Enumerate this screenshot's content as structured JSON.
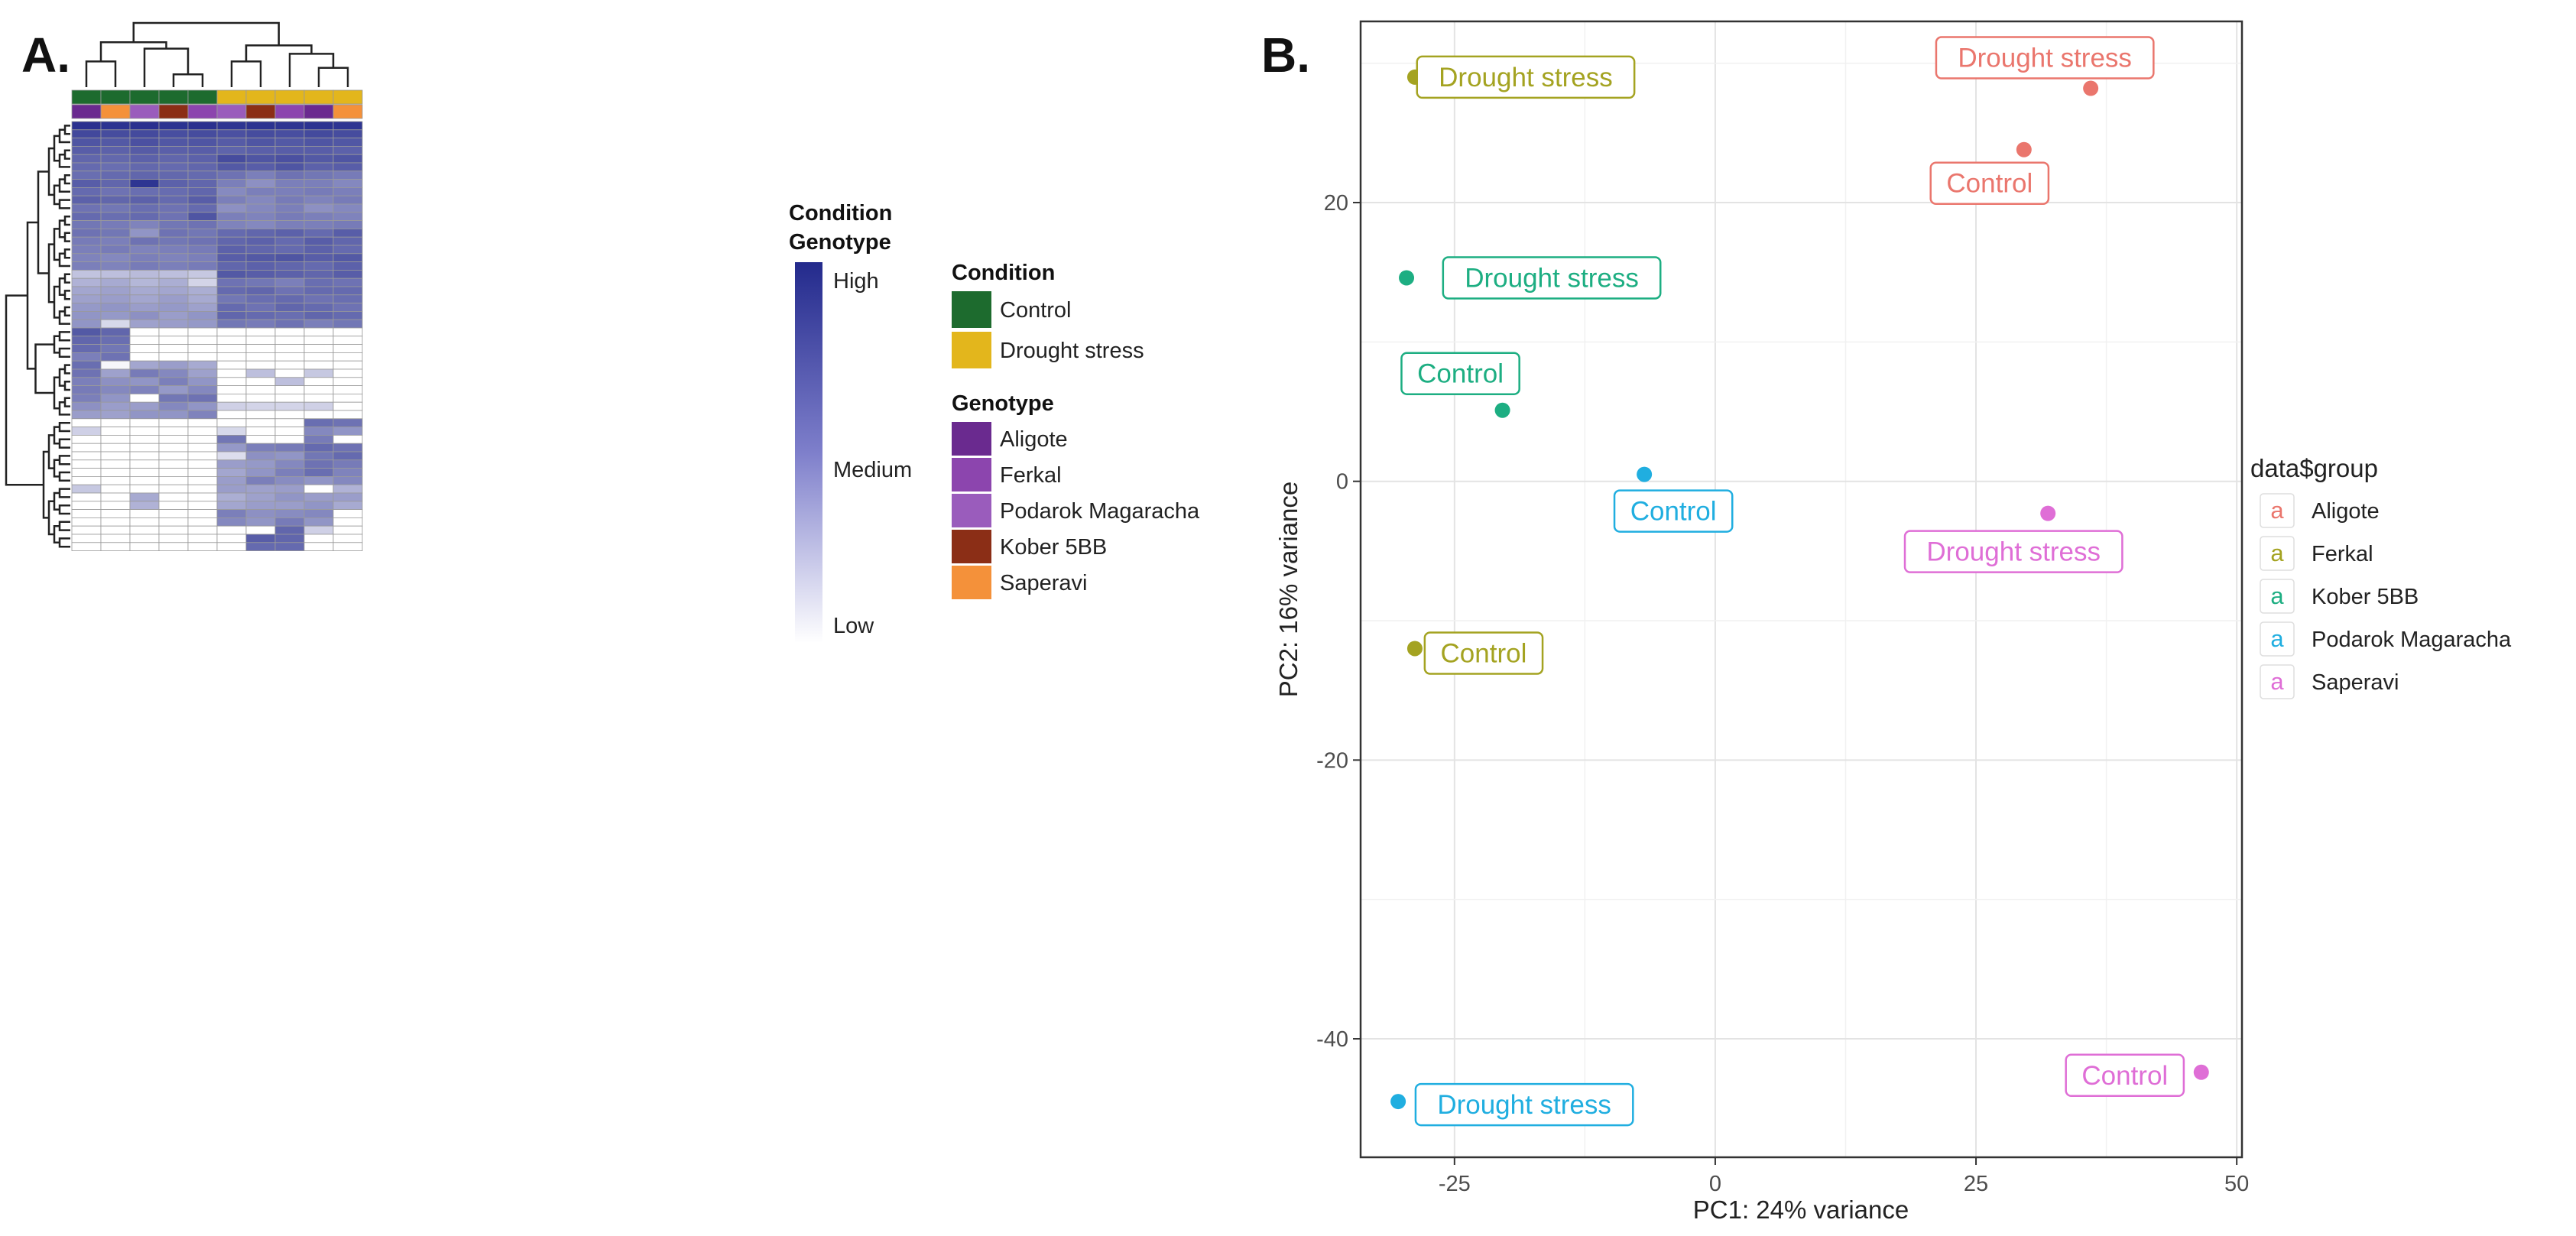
{
  "panels": {
    "a_label": "A.",
    "b_label": "B."
  },
  "heatmap": {
    "annotation_titles": [
      "Condition",
      "Genotype"
    ],
    "legend_condition_title": "Condition",
    "legend_genotype_title": "Genotype",
    "scale_labels": [
      "High",
      "Medium",
      "Low"
    ],
    "colors": {
      "high": "#232a8c",
      "low": "#ffffff",
      "condition": {
        "Control": "#1d6b2e",
        "Drought stress": "#e3b61c"
      },
      "genotype": {
        "Aligote": "#6a2a8f",
        "Ferkal": "#8c45ae",
        "Podarok Magaracha": "#9a5cbc",
        "Kober 5BB": "#8b2e16",
        "Saperavi": "#f4913a"
      }
    }
  },
  "chart_data": [
    {
      "type": "heatmap",
      "title": "",
      "columns_condition": [
        "Control",
        "Control",
        "Control",
        "Control",
        "Control",
        "Drought stress",
        "Drought stress",
        "Drought stress",
        "Drought stress",
        "Drought stress"
      ],
      "columns_genotype": [
        "Aligote",
        "Saperavi",
        "Podarok Magaracha",
        "Kober 5BB",
        "Ferkal",
        "Podarok Magaracha",
        "Kober 5BB",
        "Ferkal",
        "Aligote",
        "Saperavi"
      ],
      "condition_levels": [
        "Control",
        "Drought stress"
      ],
      "genotype_levels": [
        "Aligote",
        "Ferkal",
        "Podarok Magaracha",
        "Kober 5BB",
        "Saperavi"
      ],
      "scale": [
        "Low",
        "Medium",
        "High"
      ],
      "values": [
        [
          0.97,
          0.96,
          0.97,
          0.96,
          0.97,
          0.95,
          0.96,
          0.95,
          0.96,
          0.95
        ],
        [
          0.86,
          0.84,
          0.85,
          0.83,
          0.84,
          0.82,
          0.84,
          0.83,
          0.85,
          0.84
        ],
        [
          0.8,
          0.78,
          0.82,
          0.79,
          0.8,
          0.77,
          0.8,
          0.78,
          0.8,
          0.79
        ],
        [
          0.76,
          0.74,
          0.77,
          0.75,
          0.76,
          0.73,
          0.75,
          0.76,
          0.76,
          0.74
        ],
        [
          0.72,
          0.71,
          0.74,
          0.72,
          0.74,
          0.84,
          0.8,
          0.82,
          0.78,
          0.8
        ],
        [
          0.7,
          0.68,
          0.71,
          0.7,
          0.72,
          0.78,
          0.76,
          0.8,
          0.74,
          0.76
        ],
        [
          0.68,
          0.7,
          0.72,
          0.71,
          0.7,
          0.66,
          0.6,
          0.66,
          0.64,
          0.62
        ],
        [
          0.76,
          0.72,
          0.95,
          0.74,
          0.72,
          0.6,
          0.52,
          0.6,
          0.6,
          0.56
        ],
        [
          0.7,
          0.66,
          0.68,
          0.69,
          0.72,
          0.55,
          0.6,
          0.6,
          0.62,
          0.6
        ],
        [
          0.74,
          0.72,
          0.74,
          0.7,
          0.76,
          0.6,
          0.56,
          0.62,
          0.58,
          0.62
        ],
        [
          0.66,
          0.64,
          0.68,
          0.66,
          0.7,
          0.52,
          0.56,
          0.6,
          0.52,
          0.56
        ],
        [
          0.7,
          0.68,
          0.7,
          0.66,
          0.8,
          0.6,
          0.58,
          0.62,
          0.6,
          0.58
        ],
        [
          0.64,
          0.62,
          0.58,
          0.64,
          0.66,
          0.58,
          0.56,
          0.6,
          0.6,
          0.62
        ],
        [
          0.66,
          0.64,
          0.5,
          0.66,
          0.64,
          0.7,
          0.72,
          0.74,
          0.7,
          0.76
        ],
        [
          0.62,
          0.6,
          0.66,
          0.64,
          0.66,
          0.72,
          0.74,
          0.7,
          0.76,
          0.72
        ],
        [
          0.6,
          0.62,
          0.58,
          0.6,
          0.62,
          0.74,
          0.72,
          0.7,
          0.74,
          0.7
        ],
        [
          0.58,
          0.56,
          0.6,
          0.58,
          0.6,
          0.76,
          0.78,
          0.8,
          0.76,
          0.78
        ],
        [
          0.6,
          0.58,
          0.62,
          0.6,
          0.62,
          0.72,
          0.74,
          0.72,
          0.7,
          0.74
        ],
        [
          0.28,
          0.3,
          0.32,
          0.3,
          0.26,
          0.78,
          0.76,
          0.74,
          0.72,
          0.76
        ],
        [
          0.36,
          0.4,
          0.34,
          0.38,
          0.2,
          0.66,
          0.64,
          0.6,
          0.68,
          0.66
        ],
        [
          0.42,
          0.44,
          0.4,
          0.42,
          0.38,
          0.7,
          0.72,
          0.66,
          0.7,
          0.7
        ],
        [
          0.44,
          0.46,
          0.42,
          0.46,
          0.4,
          0.64,
          0.68,
          0.7,
          0.66,
          0.68
        ],
        [
          0.48,
          0.5,
          0.46,
          0.48,
          0.44,
          0.7,
          0.66,
          0.72,
          0.7,
          0.66
        ],
        [
          0.5,
          0.48,
          0.52,
          0.46,
          0.5,
          0.72,
          0.7,
          0.68,
          0.72,
          0.7
        ],
        [
          0.5,
          0.18,
          0.44,
          0.46,
          0.48,
          0.64,
          0.62,
          0.66,
          0.6,
          0.64
        ],
        [
          0.78,
          0.72,
          0,
          0,
          0,
          0,
          0,
          0,
          0,
          0
        ],
        [
          0.72,
          0.68,
          0,
          0,
          0,
          0,
          0,
          0,
          0,
          0
        ],
        [
          0.7,
          0.64,
          0,
          0,
          0,
          0,
          0,
          0,
          0,
          0
        ],
        [
          0.6,
          0.66,
          0,
          0,
          0,
          0,
          0,
          0,
          0,
          0
        ],
        [
          0.68,
          0.04,
          0.42,
          0.46,
          0.4,
          0,
          0,
          0,
          0,
          0
        ],
        [
          0.66,
          0.44,
          0.62,
          0.56,
          0.44,
          0,
          0.3,
          0,
          0.26,
          0
        ],
        [
          0.6,
          0.52,
          0.5,
          0.6,
          0.5,
          0,
          0,
          0.3,
          0,
          0
        ],
        [
          0.62,
          0.56,
          0.58,
          0.48,
          0.56,
          0,
          0,
          0,
          0,
          0
        ],
        [
          0.6,
          0.5,
          0,
          0.64,
          0.66,
          0,
          0,
          0,
          0,
          0
        ],
        [
          0.52,
          0.46,
          0.46,
          0.56,
          0.5,
          0.22,
          0.2,
          0.2,
          0.22,
          0
        ],
        [
          0.46,
          0.44,
          0.5,
          0.5,
          0.58,
          0,
          0,
          0,
          0,
          0
        ],
        [
          0,
          0,
          0,
          0,
          0,
          0,
          0,
          0,
          0.68,
          0.66
        ],
        [
          0.22,
          0,
          0,
          0,
          0,
          0.18,
          0,
          0,
          0.56,
          0.5
        ],
        [
          0,
          0,
          0,
          0,
          0,
          0.64,
          0,
          0,
          0.62,
          0
        ],
        [
          0,
          0,
          0,
          0,
          0,
          0.48,
          0.6,
          0.62,
          0.7,
          0.66
        ],
        [
          0,
          0,
          0,
          0,
          0,
          0.16,
          0.52,
          0.5,
          0.64,
          0.7
        ],
        [
          0,
          0,
          0,
          0,
          0,
          0.46,
          0.48,
          0.56,
          0.66,
          0.62
        ],
        [
          0,
          0,
          0,
          0,
          0,
          0.42,
          0.5,
          0.6,
          0.68,
          0.58
        ],
        [
          0,
          0,
          0,
          0,
          0,
          0.46,
          0.6,
          0.54,
          0.5,
          0.56
        ],
        [
          0.26,
          0,
          0,
          0,
          0,
          0.46,
          0.44,
          0.46,
          0,
          0.36
        ],
        [
          0,
          0,
          0.4,
          0,
          0,
          0.38,
          0.44,
          0.5,
          0.46,
          0.46
        ],
        [
          0,
          0,
          0.36,
          0,
          0,
          0.42,
          0.46,
          0.46,
          0.5,
          0.4
        ],
        [
          0,
          0,
          0,
          0,
          0,
          0.6,
          0.52,
          0.54,
          0.56,
          0
        ],
        [
          0,
          0,
          0,
          0,
          0,
          0.56,
          0.5,
          0.62,
          0.5,
          0
        ],
        [
          0,
          0,
          0,
          0,
          0,
          0,
          0,
          0.72,
          0.22,
          0
        ],
        [
          0,
          0,
          0,
          0,
          0,
          0,
          0.76,
          0.72,
          0,
          0
        ],
        [
          0,
          0,
          0,
          0,
          0,
          0,
          0.7,
          0.7,
          0,
          0
        ]
      ]
    },
    {
      "type": "scatter",
      "title": "",
      "xlabel": "PC1: 24% variance",
      "ylabel": "PC2: 16% variance",
      "xlim": [
        -34,
        50.5
      ],
      "ylim": [
        -48.5,
        33
      ],
      "xticks": [
        -25,
        0,
        25,
        50
      ],
      "yticks": [
        20,
        0,
        -20,
        -40
      ],
      "grid": true,
      "legend_title": "data$group",
      "legend_key_glyph": "a",
      "legend_position": "right",
      "series": [
        {
          "name": "Aligote",
          "color": "#ea766d",
          "points": [
            {
              "x": 36,
              "y": 28.2,
              "label": "Drought stress"
            },
            {
              "x": 29.6,
              "y": 23.8,
              "label": "Control"
            }
          ]
        },
        {
          "name": "Ferkal",
          "color": "#a4a321",
          "points": [
            {
              "x": -28.8,
              "y": 29,
              "label": "Drought stress"
            },
            {
              "x": -28.8,
              "y": -12,
              "label": "Control"
            }
          ]
        },
        {
          "name": "Kober 5BB",
          "color": "#1dae82",
          "points": [
            {
              "x": -29.6,
              "y": 14.6,
              "label": "Drought stress"
            },
            {
              "x": -20.4,
              "y": 5.1,
              "label": "Control"
            }
          ]
        },
        {
          "name": "Podarok Magaracha",
          "color": "#20aee0",
          "points": [
            {
              "x": -6.8,
              "y": 0.5,
              "label": "Control"
            },
            {
              "x": -30.4,
              "y": -44.5,
              "label": "Drought stress"
            }
          ]
        },
        {
          "name": "Saperavi",
          "color": "#df6ed6",
          "points": [
            {
              "x": 31.9,
              "y": -2.3,
              "label": "Drought stress"
            },
            {
              "x": 46.6,
              "y": -42.4,
              "label": "Control"
            }
          ]
        }
      ]
    }
  ]
}
